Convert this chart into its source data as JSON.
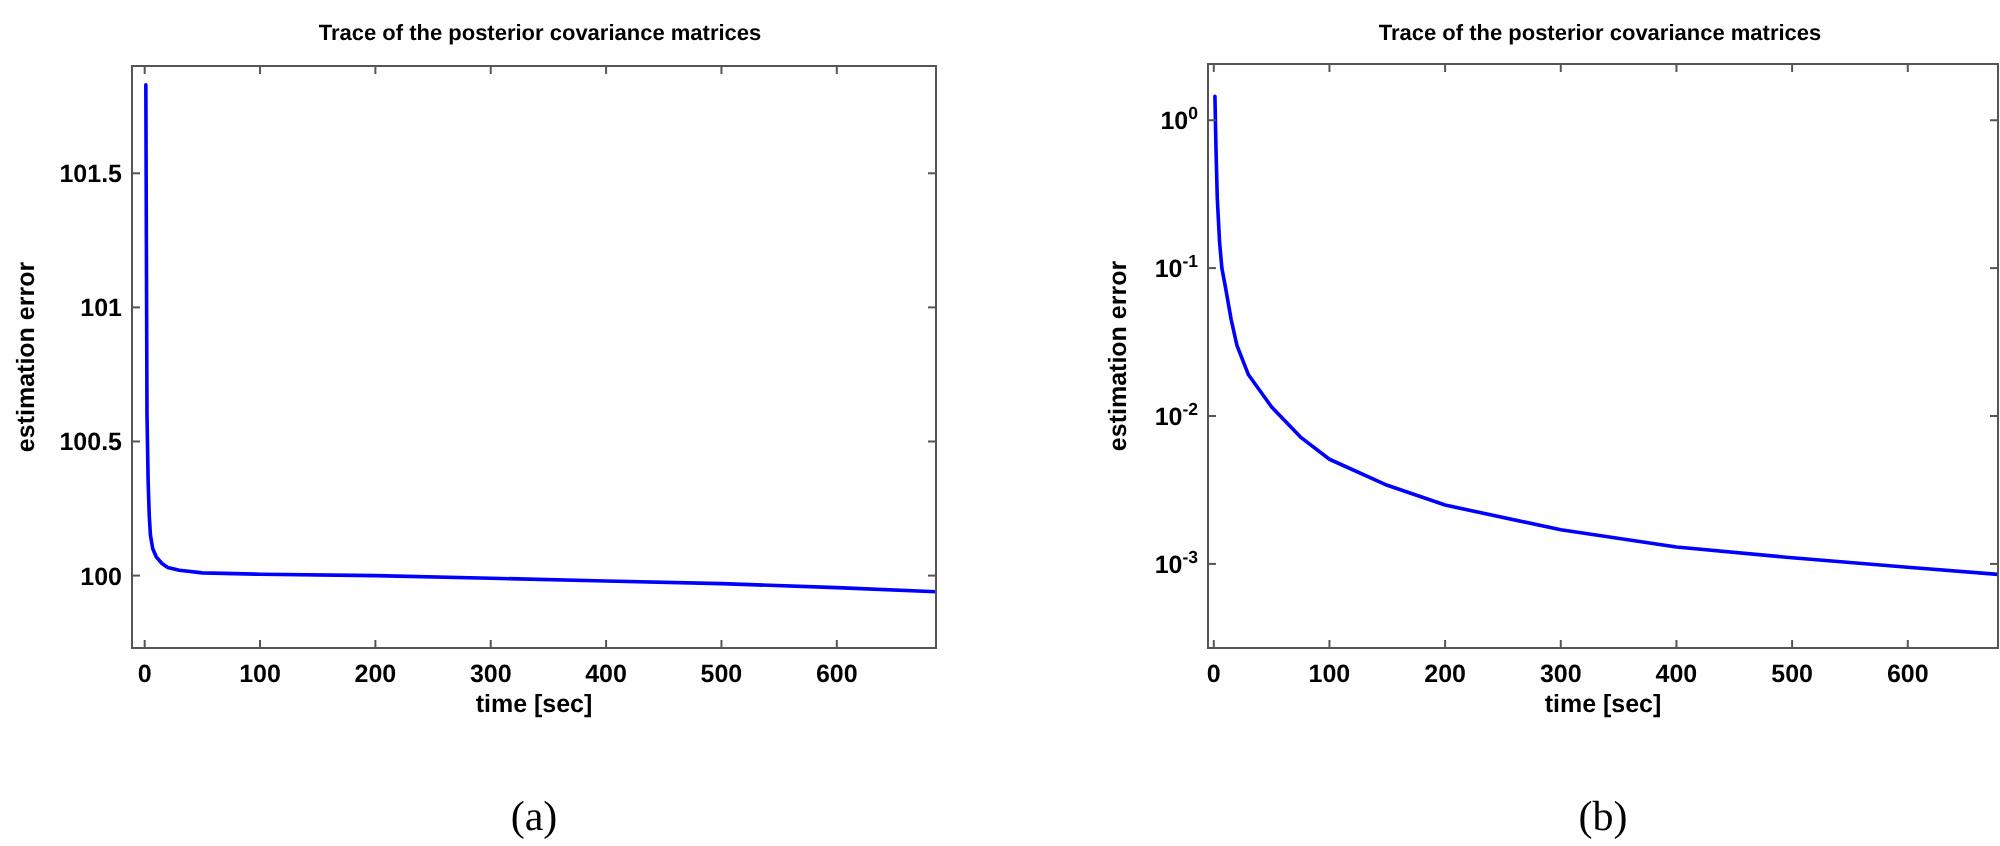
{
  "chart_data": [
    {
      "type": "line",
      "title": "Trace of the posterior covariance matrices",
      "xlabel": "time [sec]",
      "ylabel": "estimation error",
      "annotations": [
        "(a)"
      ],
      "series": [
        {
          "color": "#0000ff",
          "x": [
            1,
            1.5,
            2,
            3,
            4,
            5,
            7,
            10,
            15,
            20,
            30,
            50,
            100,
            200,
            300,
            400,
            500,
            600,
            686
          ],
          "values": [
            101.83,
            101.2,
            100.6,
            100.35,
            100.22,
            100.15,
            100.1,
            100.07,
            100.045,
            100.03,
            100.02,
            100.01,
            100.005,
            100.0,
            99.99,
            99.98,
            99.97,
            99.955,
            99.94
          ]
        }
      ],
      "xlim": [
        -11,
        686
      ],
      "xticks": [
        0,
        100,
        200,
        300,
        400,
        500,
        600
      ],
      "ylim": [
        99.73,
        101.9
      ],
      "yticks": [
        100,
        100.5,
        101,
        101.5
      ],
      "grid": false,
      "line_style": "solid"
    },
    {
      "type": "line",
      "title": "Trace of the posterior covariance matrices",
      "xlabel": "time [sec]",
      "ylabel": "estimation error",
      "annotations": [
        "(b)"
      ],
      "log": "y",
      "series": [
        {
          "color": "#0000ff",
          "x": [
            1,
            1.5,
            2,
            3,
            5,
            7,
            10,
            15,
            20,
            30,
            50,
            75,
            100,
            150,
            200,
            300,
            400,
            500,
            600,
            678
          ],
          "values": [
            1.45,
            0.9,
            0.6,
            0.3,
            0.15,
            0.1,
            0.075,
            0.045,
            0.03,
            0.019,
            0.0115,
            0.0072,
            0.0051,
            0.0034,
            0.0025,
            0.0017,
            0.0013,
            0.0011,
            0.00095,
            0.00085
          ]
        }
      ],
      "xlim": [
        -5,
        678
      ],
      "xticks": [
        0,
        100,
        200,
        300,
        400,
        500,
        600
      ],
      "ylim": [
        0.00027,
        2.4
      ],
      "yticks": [
        {
          "value": 0.001,
          "label": "10$^{-3}$"
        },
        {
          "value": 0.01,
          "label": "10$^{-2}$"
        },
        {
          "value": 0.1,
          "label": "10$^{-1}$"
        },
        {
          "value": 1,
          "label": "10$^{0}$"
        }
      ],
      "grid": false,
      "line_style": "solid"
    }
  ]
}
